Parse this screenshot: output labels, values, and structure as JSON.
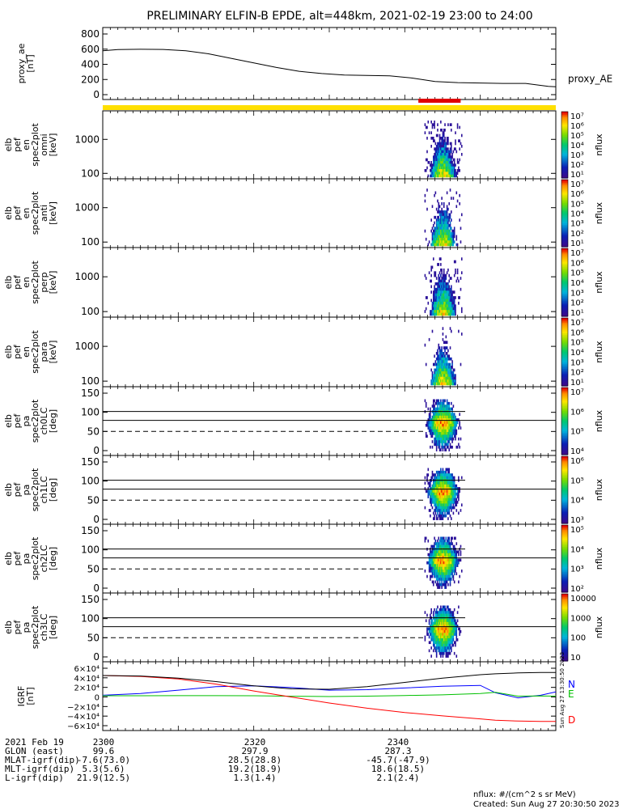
{
  "title": "PRELIMINARY ELFIN-B EPDE, alt=448km, 2021-02-19 23:00 to 24:00",
  "created": "Created: Sun Aug 27 20:30:50 2023",
  "side_stamp": "Sun Aug 27 13:30:50 2023",
  "flux_units": "nflux: #/(cm^2 s sr MeV)",
  "colors": {
    "yellow_bar": "#ffe000",
    "red_bar": "#e00000",
    "north": "#0000ff",
    "east": "#00c000",
    "down": "#ff0000"
  },
  "panels": [
    {
      "ylabel": [
        "proxy_ae",
        "[nT]"
      ],
      "yticks": [
        "800",
        "600",
        "400",
        "200",
        "0"
      ],
      "right_label": "proxy_AE",
      "kind": "line"
    },
    {
      "ylabel": [
        "elb",
        "pef",
        "en",
        "spec2plot",
        "omni",
        "[keV]"
      ],
      "yticks": [
        "1000",
        "100"
      ],
      "cb_ticks": [
        "10⁷",
        "10⁶",
        "10⁵",
        "10⁴",
        "10³",
        "10²",
        "10¹"
      ],
      "cb_label": "nflux",
      "kind": "energy"
    },
    {
      "ylabel": [
        "elb",
        "pef",
        "en",
        "spec2plot",
        "anti",
        "[keV]"
      ],
      "yticks": [
        "1000",
        "100"
      ],
      "cb_ticks": [
        "10⁷",
        "10⁶",
        "10⁵",
        "10⁴",
        "10³",
        "10²",
        "10¹"
      ],
      "cb_label": "nflux",
      "kind": "energy"
    },
    {
      "ylabel": [
        "elb",
        "pef",
        "en",
        "spec2plot",
        "perp",
        "[keV]"
      ],
      "yticks": [
        "1000",
        "100"
      ],
      "cb_ticks": [
        "10⁷",
        "10⁶",
        "10⁵",
        "10⁴",
        "10³",
        "10²",
        "10¹"
      ],
      "cb_label": "nflux",
      "kind": "energy"
    },
    {
      "ylabel": [
        "elb",
        "pef",
        "en",
        "spec2plot",
        "para",
        "[keV]"
      ],
      "yticks": [
        "1000",
        "100"
      ],
      "cb_ticks": [
        "10⁷",
        "10⁶",
        "10⁵",
        "10⁴",
        "10³",
        "10²",
        "10¹"
      ],
      "cb_label": "nflux",
      "kind": "energy"
    },
    {
      "ylabel": [
        "elb",
        "pef",
        "pa",
        "spec2plot",
        "ch0LC",
        "[deg]"
      ],
      "yticks": [
        "150",
        "100",
        "50",
        "0"
      ],
      "cb_ticks": [
        "10⁷",
        "10⁶",
        "10⁵",
        "10⁴"
      ],
      "cb_label": "nflux",
      "kind": "pa"
    },
    {
      "ylabel": [
        "elb",
        "pef",
        "pa",
        "spec2plot",
        "ch1LC",
        "[deg]"
      ],
      "yticks": [
        "150",
        "100",
        "50",
        "0"
      ],
      "cb_ticks": [
        "10⁶",
        "10⁵",
        "10⁴",
        "10³"
      ],
      "cb_label": "nflux",
      "kind": "pa"
    },
    {
      "ylabel": [
        "elb",
        "pef",
        "pa",
        "spec2plot",
        "ch2LC",
        "[deg]"
      ],
      "yticks": [
        "150",
        "100",
        "50",
        "0"
      ],
      "cb_ticks": [
        "10⁵",
        "10⁴",
        "10³",
        "10²"
      ],
      "cb_label": "nflux",
      "kind": "pa"
    },
    {
      "ylabel": [
        "elb",
        "pef",
        "pa",
        "spec2plot",
        "ch3LC",
        "[deg]"
      ],
      "yticks": [
        "150",
        "100",
        "50",
        "0"
      ],
      "cb_ticks": [
        "10000",
        "1000",
        "100",
        "10"
      ],
      "cb_label": "nflux",
      "kind": "pa"
    },
    {
      "ylabel": [
        "IGRF",
        "[nT]"
      ],
      "yticks": [
        "6×10⁴",
        "4×10⁴",
        "2×10⁴",
        "0",
        "−2×10⁴",
        "−4×10⁴",
        "−6×10⁴"
      ],
      "legend": [
        "N",
        "E",
        "D"
      ],
      "kind": "igrf"
    }
  ],
  "ephemeris": {
    "labels": [
      "2021 Feb 19",
      "GLON (east)",
      "MLAT-igrf(dip)",
      "MLT-igrf(dip)",
      "L-igrf(dip)"
    ],
    "columns": [
      [
        "2300",
        "99.6",
        "-7.6(73.0)",
        "5.3(5.6)",
        "21.9(12.5)"
      ],
      [
        "2320",
        "297.9",
        "28.5(28.8)",
        "19.2(18.9)",
        "1.3(1.4)"
      ],
      [
        "2340",
        "287.3",
        "-45.7(-47.9)",
        "18.6(18.5)",
        "2.1(2.4)"
      ]
    ]
  },
  "chart_data": [
    {
      "type": "line",
      "title": "PRELIMINARY ELFIN-B EPDE, alt=448km, 2021-02-19 23:00 to 24:00",
      "ylabel": "proxy_ae [nT]",
      "ylim": [
        -60,
        840
      ],
      "x_minutes": [
        0,
        2,
        5,
        8,
        11,
        14,
        17,
        20,
        23,
        26,
        29,
        32,
        35,
        38,
        41,
        44,
        47,
        50,
        53,
        56,
        59,
        60
      ],
      "series": [
        {
          "name": "proxy_AE",
          "values": [
            600,
            615,
            620,
            618,
            600,
            560,
            500,
            440,
            380,
            330,
            300,
            280,
            275,
            270,
            240,
            195,
            180,
            175,
            170,
            170,
            130,
            125
          ]
        }
      ]
    },
    {
      "type": "heatmap",
      "title": "IGRF [nT]",
      "ylim": [
        -65000,
        65000
      ],
      "x_minutes": [
        0,
        5,
        10,
        15,
        20,
        25,
        30,
        35,
        40,
        45,
        50,
        52,
        55,
        58,
        60
      ],
      "series": [
        {
          "name": "N",
          "values": [
            2000,
            6000,
            14000,
            22000,
            24000,
            20000,
            14000,
            15000,
            19000,
            23000,
            25000,
            8000,
            -4000,
            2000,
            10000
          ]
        },
        {
          "name": "E",
          "values": [
            1000,
            1000,
            1200,
            1200,
            1000,
            -200,
            -1000,
            0,
            1500,
            3000,
            6000,
            9000,
            0,
            500,
            0
          ]
        },
        {
          "name": "D",
          "values": [
            48000,
            46000,
            40000,
            28000,
            12000,
            -2000,
            -16000,
            -28000,
            -38000,
            -46000,
            -53000,
            -56000,
            -58000,
            -59000,
            -59000
          ]
        },
        {
          "values": [
            48000,
            47000,
            42000,
            34000,
            24000,
            17000,
            16000,
            22000,
            32000,
            42000,
            50000,
            52000,
            54000,
            55000,
            55000
          ]
        }
      ]
    }
  ]
}
